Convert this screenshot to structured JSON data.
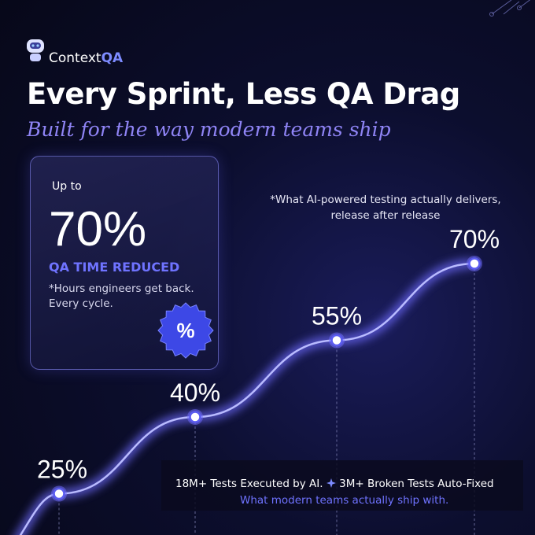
{
  "brand": {
    "name": "Context",
    "accent": "QA"
  },
  "title": "Every Sprint, Less QA Drag",
  "subtitle": "Built for the way modern teams ship",
  "card": {
    "prefix": "Up to",
    "value": "70%",
    "label": "QA TIME REDUCED",
    "note": "*Hours engineers get back. Every cycle.",
    "badge": "%"
  },
  "chart_data": {
    "type": "line",
    "note": "*What AI-powered testing actually delivers, release after release",
    "values": [
      25,
      40,
      55,
      70
    ],
    "value_labels": [
      "25%",
      "40%",
      "55%",
      "70%"
    ],
    "color": "#6f6cff"
  },
  "footer": {
    "stat_1": "18M+ Tests Executed by AI.",
    "stat_2": "3M+ Broken Tests Auto-Fixed",
    "tagline": "What modern teams actually ship with."
  }
}
